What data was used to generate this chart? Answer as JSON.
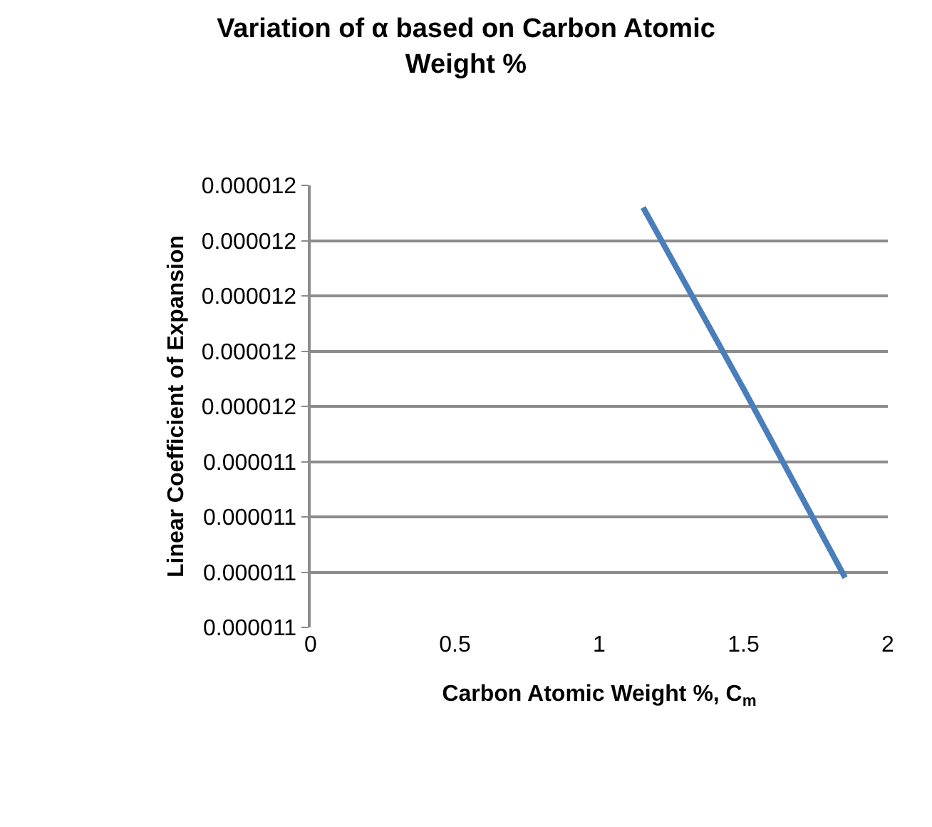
{
  "chart_data": {
    "type": "line",
    "title": "Variation of α based on Carbon Atomic Weight %",
    "xlabel": "Carbon Atomic Weight %, C$_{m}$",
    "ylabel": "Linear Coefficient of Expansion",
    "x": [
      1.152,
      1.502,
      1.852
    ],
    "series": [
      {
        "color": "#4a7ebb",
        "values": [
          1.186e-05,
          1.153e-05,
          1.119e-05
        ]
      }
    ],
    "xlim": [
      0,
      2
    ],
    "xticks": [
      0,
      0.5,
      1,
      1.5,
      2
    ],
    "ylim": [
      1.11e-05,
      1.19e-05
    ],
    "yticks": [
      {
        "value": 1.11e-05,
        "label": "0.000011"
      },
      {
        "value": 1.12e-05,
        "label": "0.000011"
      },
      {
        "value": 1.13e-05,
        "label": "0.000011"
      },
      {
        "value": 1.14e-05,
        "label": "0.000011"
      },
      {
        "value": 1.15e-05,
        "label": "0.000012"
      },
      {
        "value": 1.16e-05,
        "label": "0.000012"
      },
      {
        "value": 1.17e-05,
        "label": "0.000012"
      },
      {
        "value": 1.18e-05,
        "label": "0.000012"
      },
      {
        "value": 1.19e-05,
        "label": "0.000012"
      }
    ],
    "grid": "y",
    "marker": "none",
    "line_style": "solid"
  }
}
